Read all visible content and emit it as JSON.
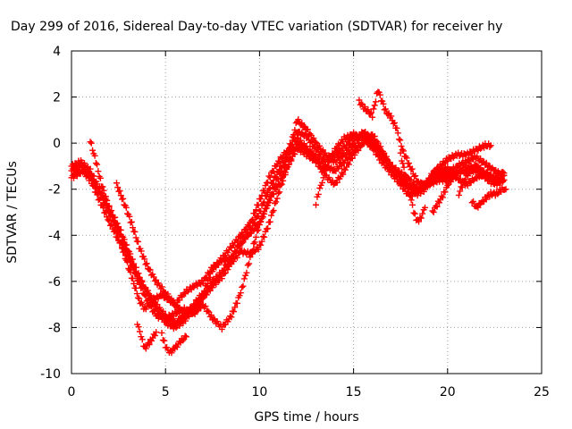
{
  "chart_data": {
    "type": "scatter",
    "title": "Day 299 of 2016, Sidereal Day-to-day VTEC variation (SDTVAR) for receiver hy",
    "xlabel": "GPS time / hours",
    "ylabel": "SDTVAR / TECUs",
    "xlim": [
      0,
      25
    ],
    "ylim": [
      -10,
      4
    ],
    "xticks": [
      0,
      5,
      10,
      15,
      20,
      25
    ],
    "yticks": [
      -10,
      -8,
      -6,
      -4,
      -2,
      0,
      2,
      4
    ],
    "grid": true,
    "marker": "+",
    "color": "#ff0000",
    "series": [
      {
        "values": [
          [
            0,
            -1.5
          ],
          [
            0.6,
            -1.2
          ],
          [
            1.0,
            -1.6
          ],
          [
            1.5,
            -2.5
          ],
          [
            2.0,
            -3.4
          ],
          [
            2.5,
            -4.2
          ],
          [
            3.0,
            -5.0
          ],
          [
            3.5,
            -5.8
          ],
          [
            4.0,
            -6.4
          ],
          [
            4.5,
            -7.0
          ],
          [
            5.0,
            -7.5
          ],
          [
            5.5,
            -7.8
          ],
          [
            6.0,
            -7.5
          ],
          [
            6.5,
            -7.0
          ],
          [
            7.0,
            -6.5
          ],
          [
            7.5,
            -5.5
          ],
          [
            8.0,
            -5.0
          ],
          [
            8.5,
            -4.5
          ],
          [
            9.0,
            -4.0
          ],
          [
            9.5,
            -3.5
          ],
          [
            10.0,
            -2.5
          ],
          [
            10.5,
            -1.5
          ],
          [
            11.0,
            -0.8
          ],
          [
            11.5,
            -0.3
          ],
          [
            12.0,
            0.5
          ],
          [
            12.5,
            0.3
          ],
          [
            13.0,
            -0.3
          ],
          [
            13.5,
            -0.8
          ],
          [
            14.0,
            -0.5
          ],
          [
            14.5,
            -0.2
          ],
          [
            15.0,
            0.3
          ],
          [
            15.5,
            0.3
          ],
          [
            16.0,
            0.0
          ],
          [
            16.5,
            -0.5
          ],
          [
            17.0,
            -1.0
          ],
          [
            17.5,
            -1.3
          ],
          [
            18.0,
            -1.6
          ],
          [
            18.5,
            -2.0
          ],
          [
            19.0,
            -1.6
          ],
          [
            19.5,
            -1.2
          ],
          [
            20.0,
            -1.3
          ],
          [
            20.5,
            -1.0
          ],
          [
            21.0,
            -0.8
          ],
          [
            21.5,
            -0.6
          ],
          [
            22.0,
            -0.9
          ],
          [
            22.5,
            -1.2
          ],
          [
            23.0,
            -1.4
          ]
        ]
      },
      {
        "values": [
          [
            0,
            -1.0
          ],
          [
            0.5,
            -0.8
          ],
          [
            1.0,
            -1.2
          ],
          [
            1.5,
            -2.0
          ],
          [
            2.0,
            -2.8
          ],
          [
            2.5,
            -3.6
          ],
          [
            3.0,
            -4.6
          ],
          [
            3.5,
            -5.6
          ],
          [
            4.0,
            -6.5
          ],
          [
            4.5,
            -7.2
          ],
          [
            5.0,
            -7.8
          ],
          [
            5.5,
            -8.0
          ],
          [
            6.0,
            -7.7
          ],
          [
            6.5,
            -7.2
          ],
          [
            7.0,
            -6.7
          ],
          [
            7.5,
            -6.2
          ],
          [
            8.0,
            -5.8
          ],
          [
            8.5,
            -5.2
          ],
          [
            9.0,
            -4.7
          ],
          [
            9.5,
            -4.8
          ],
          [
            10.0,
            -4.5
          ],
          [
            10.5,
            -3.5
          ],
          [
            11.0,
            -2.2
          ],
          [
            11.5,
            -1.0
          ],
          [
            12.0,
            0.0
          ],
          [
            12.5,
            -0.3
          ],
          [
            13.0,
            -0.7
          ],
          [
            13.5,
            -1.2
          ],
          [
            14.0,
            -0.3
          ],
          [
            14.5,
            0.2
          ],
          [
            15.0,
            0.4
          ],
          [
            15.5,
            0.2
          ],
          [
            16.0,
            -0.2
          ],
          [
            16.5,
            -0.8
          ],
          [
            17.0,
            -1.3
          ],
          [
            17.5,
            -1.8
          ],
          [
            18.0,
            -2.3
          ],
          [
            18.5,
            -2.0
          ],
          [
            19.0,
            -1.8
          ],
          [
            19.5,
            -1.6
          ],
          [
            20.0,
            -1.6
          ],
          [
            20.5,
            -1.3
          ],
          [
            21.0,
            -1.1
          ],
          [
            21.5,
            -1.0
          ],
          [
            22.0,
            -1.3
          ],
          [
            22.5,
            -1.6
          ],
          [
            23.0,
            -1.6
          ]
        ]
      },
      {
        "values": [
          [
            0,
            -1.2
          ],
          [
            0.5,
            -1.0
          ],
          [
            1.0,
            -1.4
          ],
          [
            1.5,
            -2.2
          ],
          [
            2.0,
            -3.0
          ],
          [
            2.5,
            -3.8
          ],
          [
            3.0,
            -4.8
          ],
          [
            3.5,
            -5.9
          ],
          [
            4.0,
            -6.8
          ],
          [
            4.5,
            -7.5
          ],
          [
            5.0,
            -7.6
          ],
          [
            5.5,
            -7.4
          ],
          [
            6.0,
            -7.2
          ],
          [
            6.5,
            -7.4
          ],
          [
            7.0,
            -7.0
          ],
          [
            7.5,
            -7.6
          ],
          [
            8.0,
            -8.0
          ],
          [
            8.5,
            -7.5
          ],
          [
            9.0,
            -6.5
          ],
          [
            9.5,
            -5.0
          ],
          [
            10.0,
            -3.5
          ],
          [
            10.5,
            -2.5
          ],
          [
            11.0,
            -1.8
          ],
          [
            11.5,
            -1.0
          ],
          [
            12.0,
            -0.2
          ],
          [
            12.5,
            -0.5
          ],
          [
            13.0,
            -0.8
          ],
          [
            13.5,
            -1.4
          ],
          [
            14.0,
            -1.8
          ],
          [
            14.5,
            -1.2
          ],
          [
            15.0,
            -0.5
          ],
          [
            15.5,
            0.0
          ],
          [
            16.0,
            0.4
          ],
          [
            16.5,
            -0.3
          ],
          [
            17.0,
            -1.0
          ],
          [
            17.5,
            -1.5
          ],
          [
            18.0,
            -1.9
          ],
          [
            18.5,
            -2.1
          ],
          [
            19.0,
            -1.7
          ],
          [
            19.5,
            -1.4
          ],
          [
            20.0,
            -1.5
          ],
          [
            20.5,
            -1.3
          ],
          [
            21.0,
            -1.2
          ],
          [
            21.5,
            -1.2
          ],
          [
            22.0,
            -1.5
          ],
          [
            22.5,
            -1.8
          ],
          [
            23.0,
            -1.6
          ]
        ]
      },
      {
        "values": [
          [
            1.0,
            0.1
          ],
          [
            1.3,
            -0.8
          ],
          [
            1.6,
            -1.8
          ],
          [
            2.0,
            -2.8
          ],
          [
            2.4,
            -3.8
          ],
          [
            2.8,
            -4.8
          ],
          [
            3.2,
            -5.8
          ],
          [
            3.6,
            -6.8
          ],
          [
            3.9,
            -7.2
          ],
          [
            4.3,
            -6.8
          ],
          [
            4.8,
            -6.6
          ],
          [
            5.2,
            -6.8
          ],
          [
            5.5,
            -7.0
          ],
          [
            6.0,
            -6.5
          ],
          [
            6.5,
            -6.2
          ],
          [
            7.0,
            -6.0
          ],
          [
            7.5,
            -5.4
          ],
          [
            8.0,
            -5.1
          ],
          [
            8.5,
            -5.0
          ],
          [
            9.0,
            -4.4
          ],
          [
            9.5,
            -3.8
          ],
          [
            10.0,
            -3.0
          ],
          [
            10.5,
            -2.0
          ],
          [
            11.0,
            -1.2
          ],
          [
            11.5,
            -0.6
          ],
          [
            12.0,
            1.0
          ],
          [
            12.5,
            0.6
          ],
          [
            13.0,
            0.0
          ],
          [
            13.5,
            -0.5
          ],
          [
            14.0,
            -0.8
          ],
          [
            14.5,
            -0.5
          ],
          [
            15.0,
            0.0
          ],
          [
            15.5,
            0.5
          ],
          [
            16.0,
            0.2
          ],
          [
            16.5,
            -0.5
          ],
          [
            17.0,
            -1.0
          ],
          [
            17.5,
            -1.5
          ],
          [
            18.0,
            -2.0
          ],
          [
            18.4,
            -2.2
          ],
          [
            18.8,
            -2.0
          ],
          [
            19.2,
            -1.3
          ],
          [
            19.6,
            -1.0
          ],
          [
            20.0,
            -0.7
          ],
          [
            20.5,
            -0.5
          ],
          [
            21.0,
            -0.5
          ],
          [
            21.5,
            -0.3
          ],
          [
            22.0,
            -0.1
          ],
          [
            22.3,
            -0.1
          ]
        ]
      },
      {
        "values": [
          [
            2.4,
            -1.8
          ],
          [
            2.8,
            -2.6
          ],
          [
            3.2,
            -3.5
          ],
          [
            3.6,
            -4.5
          ],
          [
            4.0,
            -5.3
          ],
          [
            4.5,
            -6.0
          ],
          [
            5.0,
            -6.5
          ],
          [
            5.5,
            -7.0
          ],
          [
            6.0,
            -7.4
          ],
          [
            6.5,
            -7.2
          ],
          [
            7.0,
            -6.6
          ],
          [
            7.5,
            -6.0
          ],
          [
            8.0,
            -5.6
          ],
          [
            8.5,
            -5.0
          ],
          [
            9.0,
            -4.3
          ],
          [
            9.5,
            -3.9
          ],
          [
            10.0,
            -3.5
          ],
          [
            10.5,
            -2.5
          ],
          [
            11.0,
            -1.5
          ],
          [
            11.5,
            -0.6
          ],
          [
            12.0,
            0.2
          ],
          [
            12.5,
            -0.2
          ],
          [
            13.0,
            -0.6
          ],
          [
            13.5,
            -1.0
          ],
          [
            14.0,
            -1.2
          ],
          [
            14.5,
            -0.8
          ],
          [
            15.0,
            -0.3
          ],
          [
            15.3,
            0.0
          ]
        ]
      },
      {
        "values": [
          [
            15.3,
            1.8
          ],
          [
            15.6,
            1.5
          ],
          [
            16.0,
            1.2
          ],
          [
            16.3,
            2.3
          ],
          [
            16.7,
            1.4
          ],
          [
            17.0,
            1.1
          ],
          [
            17.3,
            0.6
          ],
          [
            17.6,
            -0.3
          ],
          [
            18.0,
            -1.0
          ],
          [
            18.4,
            -1.7
          ],
          [
            18.8,
            -1.8
          ],
          [
            19.2,
            -1.5
          ],
          [
            19.6,
            -1.2
          ],
          [
            20.0,
            -1.1
          ],
          [
            20.5,
            -1.5
          ],
          [
            21.0,
            -1.8
          ],
          [
            21.5,
            -1.5
          ],
          [
            22.0,
            -1.3
          ],
          [
            22.5,
            -1.5
          ],
          [
            23.0,
            -1.3
          ]
        ]
      },
      {
        "values": [
          [
            17.5,
            -0.5
          ],
          [
            17.8,
            -1.5
          ],
          [
            18.0,
            -2.2
          ],
          [
            18.2,
            -3.0
          ],
          [
            18.4,
            -3.4
          ],
          [
            18.6,
            -3.2
          ],
          [
            18.8,
            -2.8
          ]
        ]
      },
      {
        "values": [
          [
            19.2,
            -3.0
          ],
          [
            19.5,
            -2.6
          ],
          [
            19.8,
            -2.2
          ],
          [
            20.0,
            -1.8
          ],
          [
            20.3,
            -1.5
          ]
        ]
      },
      {
        "values": [
          [
            20.6,
            -2.2
          ],
          [
            20.9,
            -1.6
          ],
          [
            21.2,
            -1.2
          ],
          [
            21.5,
            -1.0
          ],
          [
            21.8,
            -1.2
          ]
        ]
      },
      {
        "values": [
          [
            21.3,
            -2.5
          ],
          [
            21.5,
            -2.8
          ],
          [
            21.8,
            -2.6
          ],
          [
            22.0,
            -2.4
          ],
          [
            22.3,
            -2.2
          ],
          [
            22.6,
            -2.2
          ],
          [
            22.9,
            -2.0
          ],
          [
            23.1,
            -2.0
          ]
        ]
      },
      {
        "values": [
          [
            3.5,
            -7.8
          ],
          [
            3.7,
            -8.4
          ],
          [
            3.9,
            -8.9
          ],
          [
            4.2,
            -8.6
          ],
          [
            4.5,
            -8.2
          ]
        ]
      },
      {
        "values": [
          [
            4.8,
            -8.3
          ],
          [
            5.0,
            -8.8
          ],
          [
            5.2,
            -9.1
          ],
          [
            5.5,
            -8.9
          ],
          [
            5.8,
            -8.6
          ],
          [
            6.1,
            -8.4
          ]
        ]
      },
      {
        "values": [
          [
            13.0,
            -2.6
          ],
          [
            13.2,
            -2.0
          ],
          [
            13.4,
            -1.5
          ]
        ]
      }
    ]
  }
}
